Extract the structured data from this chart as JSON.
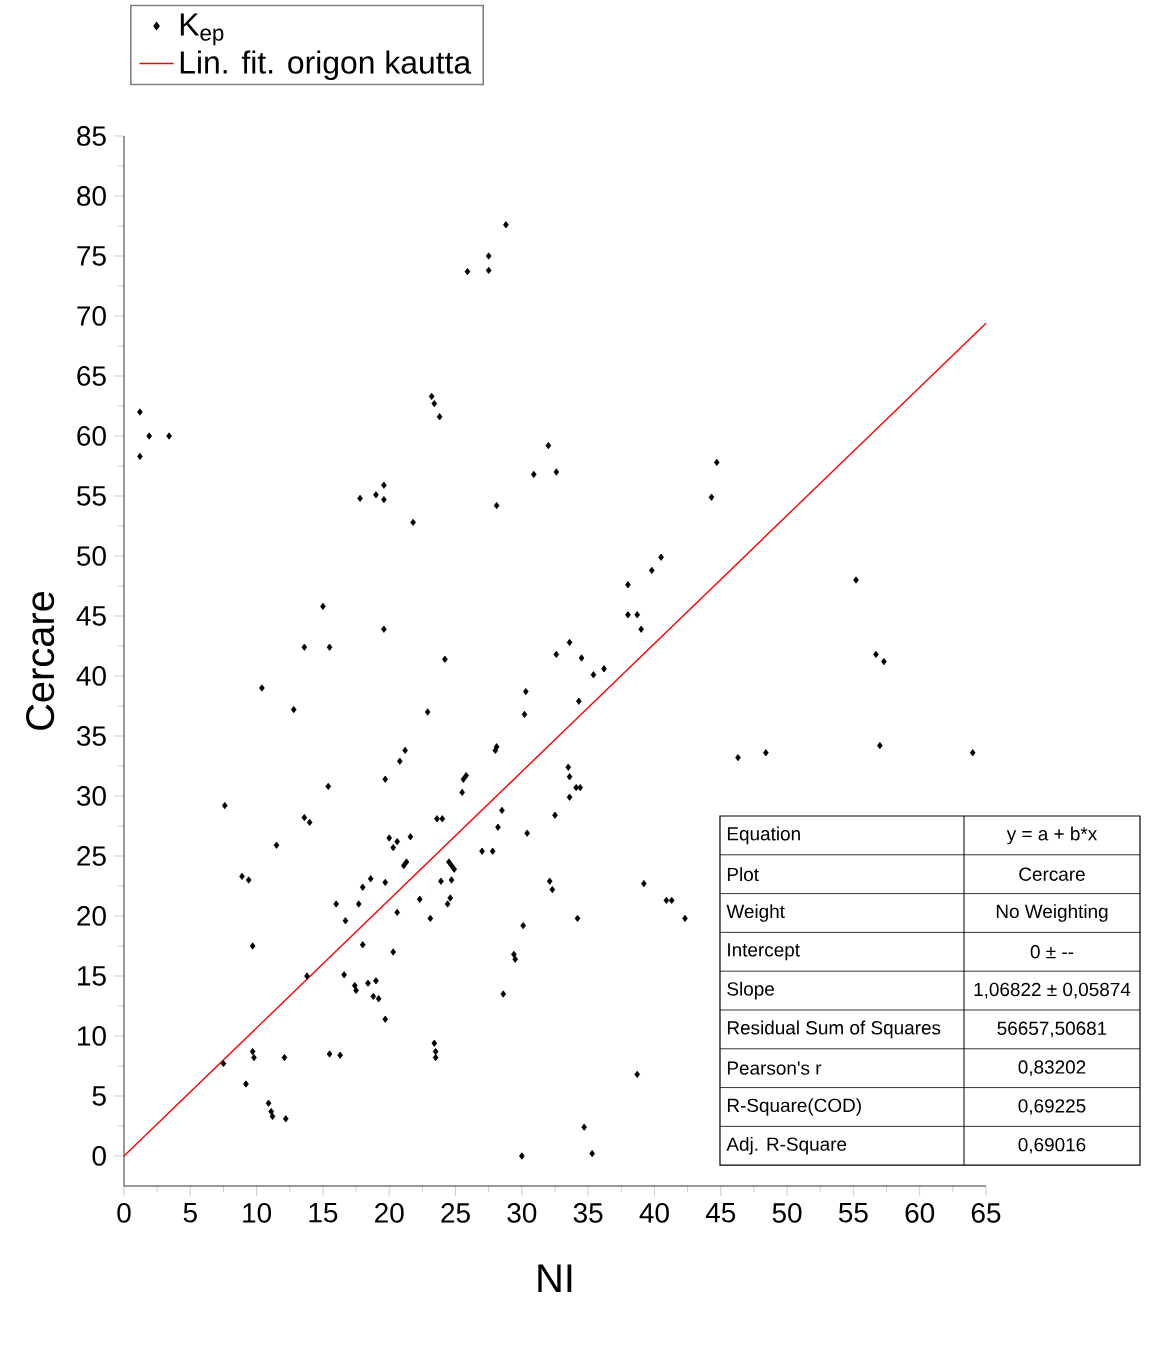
{
  "chart_data": {
    "type": "scatter",
    "xlabel": "NI",
    "ylabel": "Cercare",
    "xlim": [
      0,
      65
    ],
    "ylim": [
      -2.5,
      85
    ],
    "xticks": [
      0,
      5,
      10,
      15,
      20,
      25,
      30,
      35,
      40,
      45,
      50,
      55,
      60,
      65
    ],
    "yticks": [
      0,
      5,
      10,
      15,
      20,
      25,
      30,
      35,
      40,
      45,
      50,
      55,
      60,
      65,
      70,
      75,
      80,
      85
    ],
    "legend": "top left",
    "marker": "diamond",
    "grid": false,
    "series": [
      {
        "name": "K$_{ep}$",
        "color": "#000000",
        "x": [
          1.2,
          1.9,
          3.4,
          1.2,
          25.9,
          27.5,
          27.5,
          28.8,
          23.2,
          23.4,
          23.8,
          17.8,
          19,
          19.6,
          19.6,
          21.8,
          28.1,
          30.9,
          32,
          32.6,
          15,
          19.6,
          44.7,
          44.3,
          40.5,
          39.8,
          38,
          38,
          38.7,
          39,
          55.2,
          13.6,
          15.5,
          24.2,
          10.4,
          12.8,
          22.9,
          30.3,
          30.2,
          33.6,
          32.6,
          34.5,
          36.2,
          35.4,
          34.3,
          28.1,
          28,
          21.2,
          20.8,
          25.8,
          25.6,
          25.5,
          19.7,
          15.4,
          7.6,
          33.5,
          33.6,
          34.1,
          34.4,
          33.6,
          28.5,
          28.2,
          23.6,
          24,
          13.6,
          14,
          30.4,
          32.5,
          20,
          20.6,
          20.3,
          21.6,
          21.3,
          21.1,
          27,
          27.8,
          11.5,
          24.5,
          24.7,
          24.9,
          24.7,
          23.9,
          8.9,
          9.4,
          18.6,
          18,
          19.7,
          17.7,
          16,
          22.3,
          24.6,
          24.4,
          16.7,
          20.6,
          23.1,
          9.7,
          18,
          20.3,
          30.1,
          34.2,
          32.1,
          32.3,
          29.4,
          29.5,
          13.8,
          16.6,
          17.4,
          17.5,
          18.4,
          19,
          18.8,
          19.2,
          19.7,
          28.6,
          7.5,
          9.7,
          9.8,
          12.1,
          15.5,
          16.3,
          23.4,
          23.5,
          23.5,
          9.2,
          10.9,
          11.1,
          11.2,
          12.2,
          30,
          34.7,
          35.3,
          46.3,
          39.2,
          40.9,
          41.3,
          42.3,
          38.7,
          48.4,
          56.7,
          57.3,
          57,
          64
        ],
        "values": [
          62,
          60,
          60,
          58.3,
          73.7,
          75,
          73.8,
          77.6,
          63.3,
          62.7,
          61.6,
          54.8,
          55.1,
          55.9,
          54.7,
          52.8,
          54.2,
          56.8,
          59.2,
          57,
          45.8,
          43.9,
          57.8,
          54.9,
          49.9,
          48.8,
          47.6,
          45.1,
          45.1,
          43.9,
          48,
          42.4,
          42.4,
          41.4,
          39,
          37.2,
          37,
          38.7,
          36.8,
          42.8,
          41.8,
          41.5,
          40.6,
          40.1,
          37.9,
          34.1,
          33.8,
          33.8,
          32.9,
          31.7,
          31.4,
          30.3,
          31.4,
          30.8,
          29.2,
          32.4,
          31.6,
          30.7,
          30.7,
          29.9,
          28.8,
          27.4,
          28.1,
          28.1,
          28.2,
          27.8,
          26.9,
          28.4,
          26.5,
          26.2,
          25.7,
          26.6,
          24.5,
          24.2,
          25.4,
          25.4,
          25.9,
          24.5,
          24.2,
          23.9,
          23,
          22.9,
          23.3,
          23,
          23.1,
          22.4,
          22.8,
          21,
          21,
          21.4,
          21.5,
          21,
          19.6,
          20.3,
          19.8,
          17.5,
          17.6,
          17,
          19.2,
          19.8,
          22.9,
          22.2,
          16.8,
          16.4,
          15,
          15.1,
          14.2,
          13.8,
          14.4,
          14.6,
          13.3,
          13.1,
          11.4,
          13.5,
          7.7,
          8.7,
          8.2,
          8.2,
          8.5,
          8.4,
          9.4,
          8.7,
          8.2,
          6,
          4.4,
          3.7,
          3.3,
          3.1,
          0,
          2.4,
          0.2,
          33.2,
          22.7,
          21.3,
          21.3,
          19.8,
          6.8,
          33.6,
          41.8,
          41.2,
          34.2,
          33.6
        ]
      },
      {
        "name": "Lin. fit. origon kautta",
        "type": "line",
        "marker": "none",
        "color": "#ff0000",
        "x": [
          0,
          65
        ],
        "values": [
          0,
          69.4
        ]
      }
    ],
    "annotations": [
      "Equation",
      "y = a + b*x",
      "Plot",
      "Cercare",
      "Weight",
      "No Weighting",
      "Intercept",
      "0 ± --",
      "Slope",
      "1,06822 ± 0,05874",
      "Residual Sum of Squares",
      "56657,50681",
      "Pearson's r",
      "0,83202",
      "R-Square(COD)",
      "0,69225",
      "Adj. R-Square",
      "0,69016"
    ]
  }
}
